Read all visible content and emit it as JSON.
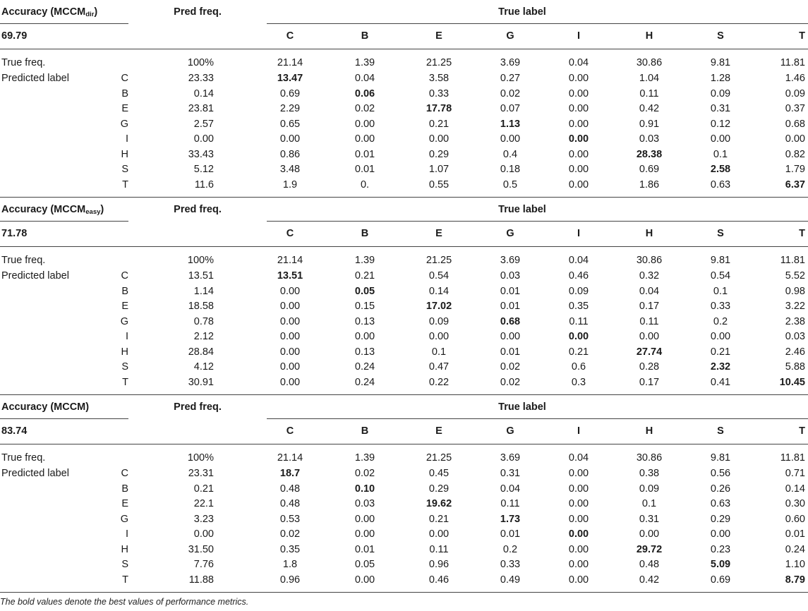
{
  "headers": {
    "pred_freq": "Pred freq.",
    "true_label": "True label",
    "true_freq_label": "True freq.",
    "predicted_label": "Predicted label"
  },
  "columns": [
    "C",
    "B",
    "E",
    "G",
    "I",
    "H",
    "S",
    "T"
  ],
  "blocks": [
    {
      "acc_prefix": "Accuracy (MCCM",
      "acc_sub": "dir",
      "acc_suffix": ")",
      "acc_value": "69.79",
      "true_freq": [
        "100%",
        "21.14",
        "1.39",
        "21.25",
        "3.69",
        "0.04",
        "30.86",
        "9.81",
        "11.81"
      ],
      "rows": [
        {
          "label": "C",
          "pred": "23.33",
          "cells": [
            "13.47",
            "0.04",
            "3.58",
            "0.27",
            "0.00",
            "1.04",
            "1.28",
            "1.46"
          ]
        },
        {
          "label": "B",
          "pred": "0.14",
          "cells": [
            "0.69",
            "0.06",
            "0.33",
            "0.02",
            "0.00",
            "0.11",
            "0.09",
            "0.09"
          ]
        },
        {
          "label": "E",
          "pred": "23.81",
          "cells": [
            "2.29",
            "0.02",
            "17.78",
            "0.07",
            "0.00",
            "0.42",
            "0.31",
            "0.37"
          ]
        },
        {
          "label": "G",
          "pred": "2.57",
          "cells": [
            "0.65",
            "0.00",
            "0.21",
            "1.13",
            "0.00",
            "0.91",
            "0.12",
            "0.68"
          ]
        },
        {
          "label": "I",
          "pred": "0.00",
          "cells": [
            "0.00",
            "0.00",
            "0.00",
            "0.00",
            "0.00",
            "0.03",
            "0.00",
            "0.00"
          ]
        },
        {
          "label": "H",
          "pred": "33.43",
          "cells": [
            "0.86",
            "0.01",
            "0.29",
            "0.4",
            "0.00",
            "28.38",
            "0.1",
            "0.82"
          ]
        },
        {
          "label": "S",
          "pred": "5.12",
          "cells": [
            "3.48",
            "0.01",
            "1.07",
            "0.18",
            "0.00",
            "0.69",
            "2.58",
            "1.79"
          ]
        },
        {
          "label": "T",
          "pred": "11.6",
          "cells": [
            "1.9",
            "0.",
            "0.55",
            "0.5",
            "0.00",
            "1.86",
            "0.63",
            "6.37"
          ]
        }
      ]
    },
    {
      "acc_prefix": "Accuracy (MCCM",
      "acc_sub": "easy",
      "acc_suffix": ")",
      "acc_value": "71.78",
      "true_freq": [
        "100%",
        "21.14",
        "1.39",
        "21.25",
        "3.69",
        "0.04",
        "30.86",
        "9.81",
        "11.81"
      ],
      "rows": [
        {
          "label": "C",
          "pred": "13.51",
          "cells": [
            "13.51",
            "0.21",
            "0.54",
            "0.03",
            "0.46",
            "0.32",
            "0.54",
            "5.52"
          ]
        },
        {
          "label": "B",
          "pred": "1.14",
          "cells": [
            "0.00",
            "0.05",
            "0.14",
            "0.01",
            "0.09",
            "0.04",
            "0.1",
            "0.98"
          ]
        },
        {
          "label": "E",
          "pred": "18.58",
          "cells": [
            "0.00",
            "0.15",
            "17.02",
            "0.01",
            "0.35",
            "0.17",
            "0.33",
            "3.22"
          ]
        },
        {
          "label": "G",
          "pred": "0.78",
          "cells": [
            "0.00",
            "0.13",
            "0.09",
            "0.68",
            "0.11",
            "0.11",
            "0.2",
            "2.38"
          ]
        },
        {
          "label": "I",
          "pred": "2.12",
          "cells": [
            "0.00",
            "0.00",
            "0.00",
            "0.00",
            "0.00",
            "0.00",
            "0.00",
            "0.03"
          ]
        },
        {
          "label": "H",
          "pred": "28.84",
          "cells": [
            "0.00",
            "0.13",
            "0.1",
            "0.01",
            "0.21",
            "27.74",
            "0.21",
            "2.46"
          ]
        },
        {
          "label": "S",
          "pred": "4.12",
          "cells": [
            "0.00",
            "0.24",
            "0.47",
            "0.02",
            "0.6",
            "0.28",
            "2.32",
            "5.88"
          ]
        },
        {
          "label": "T",
          "pred": "30.91",
          "cells": [
            "0.00",
            "0.24",
            "0.22",
            "0.02",
            "0.3",
            "0.17",
            "0.41",
            "10.45"
          ]
        }
      ]
    },
    {
      "acc_prefix": "Accuracy (MCCM)",
      "acc_sub": "",
      "acc_suffix": "",
      "acc_value": "83.74",
      "true_freq": [
        "100%",
        "21.14",
        "1.39",
        "21.25",
        "3.69",
        "0.04",
        "30.86",
        "9.81",
        "11.81"
      ],
      "rows": [
        {
          "label": "C",
          "pred": "23.31",
          "cells": [
            "18.7",
            "0.02",
            "0.45",
            "0.31",
            "0.00",
            "0.38",
            "0.56",
            "0.71"
          ]
        },
        {
          "label": "B",
          "pred": "0.21",
          "cells": [
            "0.48",
            "0.10",
            "0.29",
            "0.04",
            "0.00",
            "0.09",
            "0.26",
            "0.14"
          ]
        },
        {
          "label": "E",
          "pred": "22.1",
          "cells": [
            "0.48",
            "0.03",
            "19.62",
            "0.11",
            "0.00",
            "0.1",
            "0.63",
            "0.30"
          ]
        },
        {
          "label": "G",
          "pred": "3.23",
          "cells": [
            "0.53",
            "0.00",
            "0.21",
            "1.73",
            "0.00",
            "0.31",
            "0.29",
            "0.60"
          ]
        },
        {
          "label": "I",
          "pred": "0.00",
          "cells": [
            "0.02",
            "0.00",
            "0.00",
            "0.01",
            "0.00",
            "0.00",
            "0.00",
            "0.01"
          ]
        },
        {
          "label": "H",
          "pred": "31.50",
          "cells": [
            "0.35",
            "0.01",
            "0.11",
            "0.2",
            "0.00",
            "29.72",
            "0.23",
            "0.24"
          ]
        },
        {
          "label": "S",
          "pred": "7.76",
          "cells": [
            "1.8",
            "0.05",
            "0.96",
            "0.33",
            "0.00",
            "0.48",
            "5.09",
            "1.10"
          ]
        },
        {
          "label": "T",
          "pred": "11.88",
          "cells": [
            "0.96",
            "0.00",
            "0.46",
            "0.49",
            "0.00",
            "0.42",
            "0.69",
            "8.79"
          ]
        }
      ]
    }
  ],
  "footnote": "The bold values denote the best values of performance metrics."
}
